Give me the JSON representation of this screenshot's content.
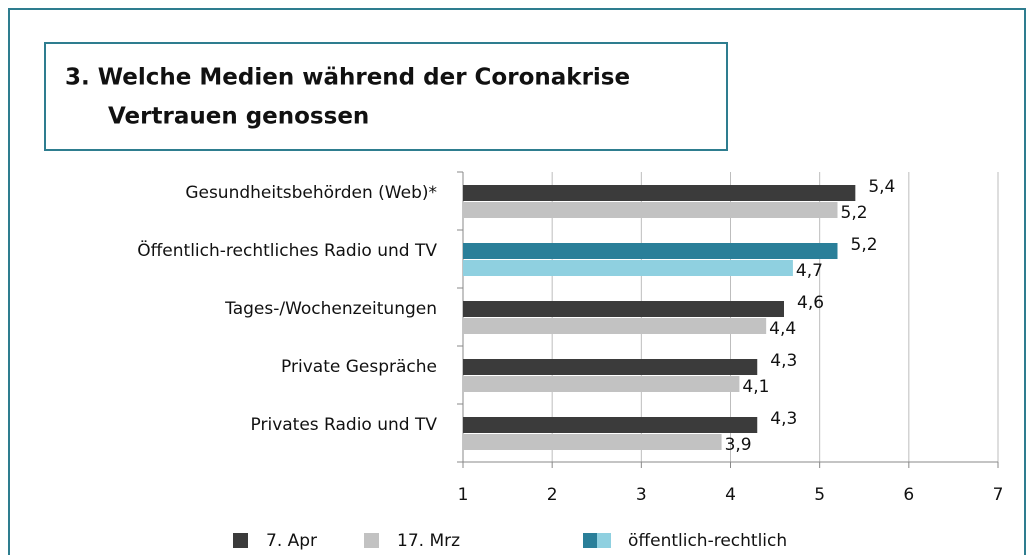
{
  "chart_data": {
    "type": "barh",
    "title": [
      "3. Welche Medien während der Coronakrise",
      "Vertrauen  genossen"
    ],
    "categories": [
      "Gesundheitsbehörden (Web)*",
      "Öffentlich-rechtliches Radio und TV",
      "Tages-/Wochenzeitungen",
      "Private Gespräche",
      "Privates Radio und  TV"
    ],
    "series": [
      {
        "name": "7. Apr",
        "color": "#3b3b3b",
        "colors": [
          "#3b3b3b",
          "#2a7f99",
          "#3b3b3b",
          "#3b3b3b",
          "#3b3b3b"
        ],
        "values": [
          5.4,
          5.2,
          4.6,
          4.3,
          4.3
        ],
        "value_labels": [
          "5,4",
          "5,2",
          "4,6",
          "4,3",
          "4,3"
        ]
      },
      {
        "name": "17. Mrz",
        "color": "#c2c2c2",
        "colors": [
          "#c2c2c2",
          "#8fd0e0",
          "#c2c2c2",
          "#c2c2c2",
          "#c2c2c2"
        ],
        "values": [
          5.2,
          4.7,
          4.4,
          4.1,
          3.9
        ],
        "value_labels": [
          "5,2",
          "4,7",
          "4,4",
          "4,1",
          "3,9"
        ]
      }
    ],
    "highlight_legend": {
      "name": "öffentlich-rechtlich",
      "colors": [
        "#2a7f99",
        "#8fd0e0"
      ]
    },
    "xlim": [
      1,
      7
    ],
    "xticks": [
      1,
      2,
      3,
      4,
      5,
      6,
      7
    ],
    "grid": true
  }
}
